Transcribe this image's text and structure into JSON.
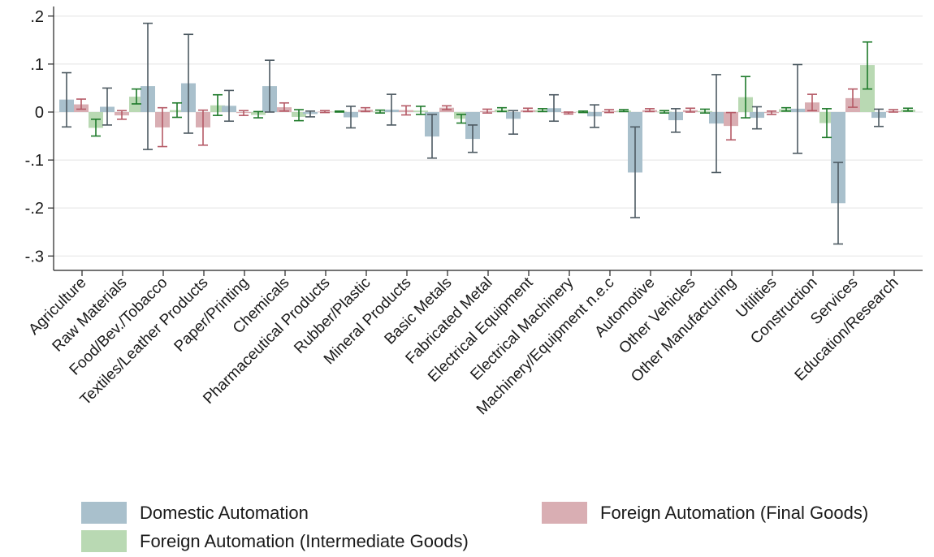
{
  "chart_data": {
    "type": "bar",
    "title": "",
    "xlabel": "",
    "ylabel": "",
    "ylim": [
      -0.33,
      0.22
    ],
    "yticks": [
      0.2,
      0.1,
      0,
      -0.1,
      -0.2,
      -0.3
    ],
    "ytick_labels": [
      ".2",
      ".1",
      "0",
      "-.1",
      "-.2",
      "-.3"
    ],
    "grid": true,
    "legend_position": "bottom",
    "categories": [
      "Agriculture",
      "Raw Materials",
      "Food/Bev./Tobacco",
      "Textiles/Leather Products",
      "Paper/Printing",
      "Chemicals",
      "Pharmaceutical Products",
      "Rubber/Plastic",
      "Mineral Products",
      "Basic Metals",
      "Fabricated Metal",
      "Electrical Equipment",
      "Electrical Machinery",
      "Machinery/Equipment n.e.c",
      "Automotive",
      "Other Vehicles",
      "Other Manufacturing",
      "Utilities",
      "Construction",
      "Services",
      "Education/Research"
    ],
    "series": [
      {
        "name": "Domestic Automation",
        "color": "#a9c0cc",
        "error_color": "#4d5a62",
        "values": [
          0.026,
          0.011,
          0.054,
          0.06,
          0.013,
          0.054,
          -0.004,
          -0.011,
          0.005,
          -0.051,
          -0.056,
          -0.014,
          0.008,
          -0.009,
          -0.126,
          -0.017,
          -0.024,
          -0.012,
          0.007,
          -0.19,
          -0.012
        ],
        "ci_low": [
          -0.031,
          -0.027,
          -0.078,
          -0.044,
          -0.019,
          0.0,
          -0.01,
          -0.033,
          -0.027,
          -0.096,
          -0.084,
          -0.046,
          -0.019,
          -0.032,
          -0.22,
          -0.042,
          -0.126,
          -0.035,
          -0.086,
          -0.275,
          -0.03
        ],
        "ci_high": [
          0.082,
          0.05,
          0.185,
          0.162,
          0.045,
          0.108,
          0.002,
          0.012,
          0.037,
          -0.005,
          -0.027,
          0.003,
          0.036,
          0.015,
          -0.031,
          0.007,
          0.078,
          0.011,
          0.099,
          -0.105,
          0.006
        ]
      },
      {
        "name": "Foreign Automation (Final Goods)",
        "color": "#d9aeb3",
        "error_color": "#b55a66",
        "values": [
          0.016,
          -0.007,
          -0.032,
          -0.032,
          -0.002,
          0.01,
          0.001,
          0.005,
          0.004,
          0.009,
          0.002,
          0.004,
          -0.002,
          0.002,
          0.004,
          0.004,
          -0.029,
          -0.002,
          0.02,
          0.029,
          0.002
        ],
        "ci_low": [
          0.006,
          -0.015,
          -0.072,
          -0.069,
          -0.007,
          0.002,
          -0.001,
          0.001,
          -0.006,
          0.005,
          -0.002,
          0.001,
          -0.004,
          -0.001,
          0.001,
          0.0,
          -0.058,
          -0.005,
          0.003,
          0.01,
          0.0
        ],
        "ci_high": [
          0.027,
          0.003,
          0.009,
          0.004,
          0.003,
          0.019,
          0.003,
          0.009,
          0.013,
          0.013,
          0.006,
          0.008,
          0.0,
          0.005,
          0.007,
          0.008,
          -0.001,
          0.002,
          0.037,
          0.048,
          0.005
        ]
      },
      {
        "name": "Foreign Automation (Intermediate Goods)",
        "color": "#b9d9b3",
        "error_color": "#1e7a2a",
        "values": [
          -0.033,
          0.032,
          0.004,
          0.014,
          -0.006,
          -0.01,
          0.001,
          0.001,
          0.003,
          -0.014,
          0.005,
          0.004,
          0.001,
          0.003,
          0.001,
          0.002,
          0.031,
          0.006,
          -0.023,
          0.098,
          0.005
        ],
        "ci_low": [
          -0.05,
          0.017,
          -0.011,
          -0.007,
          -0.012,
          -0.018,
          0.0,
          -0.002,
          -0.005,
          -0.023,
          0.001,
          0.001,
          -0.001,
          0.001,
          -0.002,
          -0.002,
          -0.012,
          0.002,
          -0.053,
          0.048,
          0.002
        ],
        "ci_high": [
          -0.015,
          0.048,
          0.019,
          0.036,
          0.001,
          0.005,
          0.002,
          0.004,
          0.012,
          -0.005,
          0.009,
          0.007,
          0.002,
          0.005,
          0.003,
          0.006,
          0.074,
          0.009,
          0.007,
          0.146,
          0.008
        ]
      }
    ]
  }
}
